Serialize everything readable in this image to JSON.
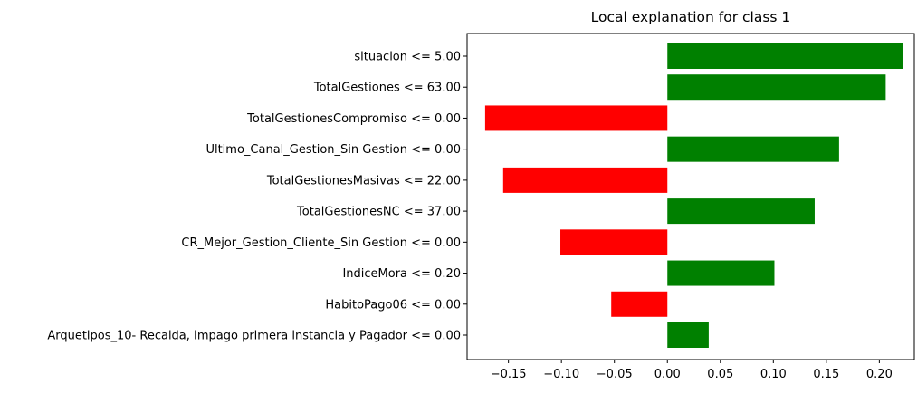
{
  "chart_data": {
    "type": "bar",
    "orientation": "horizontal",
    "title": "Local explanation for class 1",
    "xlabel": "",
    "ylabel": "",
    "xlim": [
      -0.189,
      0.233
    ],
    "xticks": [
      "−0.15",
      "−0.10",
      "−0.05",
      "0.00",
      "0.05",
      "0.10",
      "0.15",
      "0.20"
    ],
    "xtick_values": [
      -0.15,
      -0.1,
      -0.05,
      0.0,
      0.05,
      0.1,
      0.15,
      0.2
    ],
    "colors": {
      "positive": "#008000",
      "negative": "#ff0000"
    },
    "grid": false,
    "categories": [
      "situacion <= 5.00",
      "TotalGestiones <= 63.00",
      "TotalGestionesCompromiso <= 0.00",
      "Ultimo_Canal_Gestion_Sin Gestion <= 0.00",
      "TotalGestionesMasivas <= 22.00",
      "TotalGestionesNC <= 37.00",
      "CR_Mejor_Gestion_Cliente_Sin Gestion <= 0.00",
      "IndiceMora <= 0.20",
      "HabitoPago06 <= 0.00",
      "Arquetipos_10- Recaida, Impago primera instancia y Pagador <= 0.00"
    ],
    "values": [
      0.222,
      0.206,
      -0.172,
      0.162,
      -0.155,
      0.139,
      -0.101,
      0.101,
      -0.053,
      0.039
    ]
  }
}
